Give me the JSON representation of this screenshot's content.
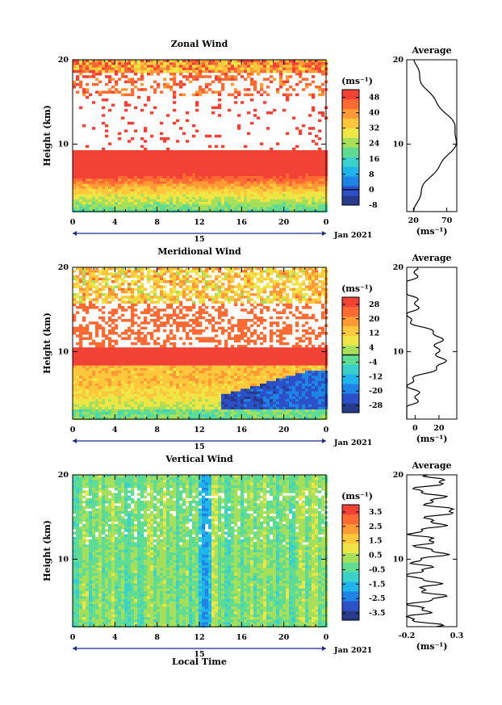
{
  "chart_data": [
    {
      "type": "heatmap",
      "title": "Zonal Wind",
      "ylabel": "Height (km)",
      "x_ticks": [
        "0",
        "4",
        "8",
        "12",
        "16",
        "20",
        "0"
      ],
      "y_ticks": [
        "20",
        "10"
      ],
      "date_label": "15",
      "date_right": "Jan 2021",
      "colorbar": {
        "unit": "(ms⁻¹)",
        "ticks": [
          "48",
          "40",
          "32",
          "24",
          "16",
          "8",
          "0",
          "-8"
        ],
        "range": [
          -8,
          52
        ]
      },
      "average": {
        "title": "Average",
        "x_ticks": [
          "20",
          "70"
        ],
        "y_ticks": [
          "20",
          "10"
        ],
        "xlabel": "(ms⁻¹)",
        "xlim": [
          10,
          85
        ]
      }
    },
    {
      "type": "heatmap",
      "title": "Meridional Wind",
      "ylabel": "Height (km)",
      "x_ticks": [
        "0",
        "4",
        "8",
        "12",
        "16",
        "20",
        "0"
      ],
      "y_ticks": [
        "20",
        "10"
      ],
      "date_label": "15",
      "date_right": "Jan 2021",
      "colorbar": {
        "unit": "(ms⁻¹)",
        "ticks": [
          "28",
          "20",
          "12",
          "4",
          "-4",
          "-12",
          "-20",
          "-28"
        ],
        "range": [
          -32,
          32
        ]
      },
      "average": {
        "title": "Average",
        "x_ticks": [
          "0",
          "20"
        ],
        "y_ticks": [
          "20",
          "10"
        ],
        "xlabel": "(ms⁻¹)",
        "xlim": [
          -7,
          35
        ]
      }
    },
    {
      "type": "heatmap",
      "title": "Vertical Wind",
      "ylabel": "Height (km)",
      "xlabel": "Local Time",
      "x_ticks": [
        "0",
        "4",
        "8",
        "12",
        "16",
        "20",
        "0"
      ],
      "y_ticks": [
        "20",
        "10"
      ],
      "date_label": "15",
      "date_right": "Jan 2021",
      "colorbar": {
        "unit": "(ms⁻¹)",
        "ticks": [
          "3.5",
          "2.5",
          "1.5",
          "0.5",
          "-0.5",
          "-1.5",
          "-2.5",
          "-3.5"
        ],
        "range": [
          -4,
          4
        ]
      },
      "average": {
        "title": "Average",
        "x_ticks": [
          "-0.2",
          "0.3"
        ],
        "y_ticks": [
          "20",
          "10"
        ],
        "xlabel": "(ms⁻¹)",
        "xlim": [
          -0.2,
          0.3
        ]
      }
    }
  ]
}
